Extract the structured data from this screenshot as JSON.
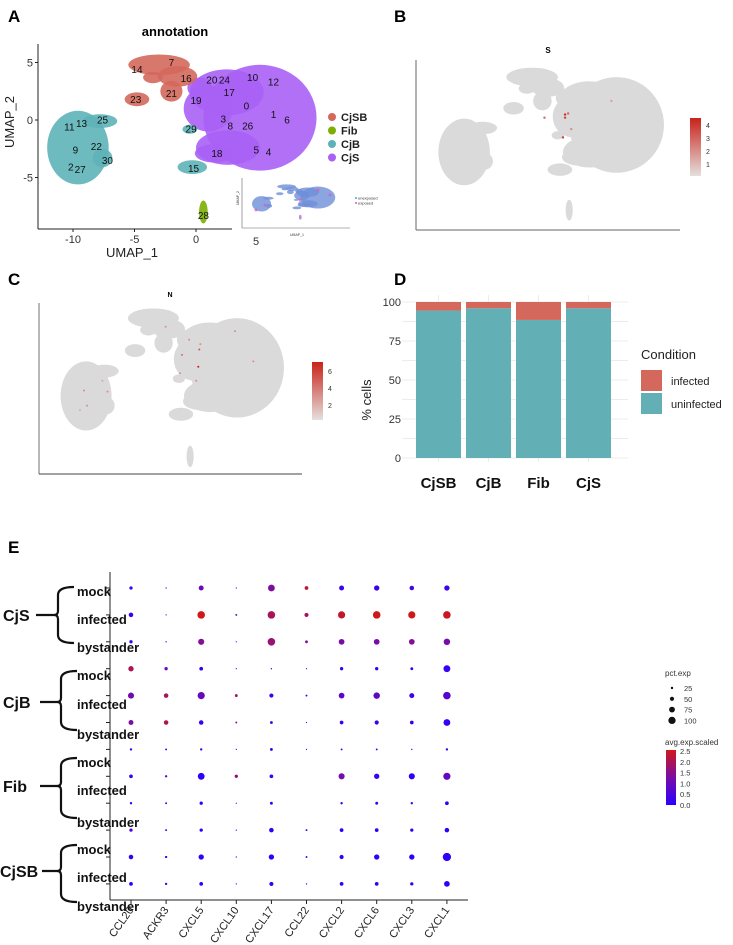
{
  "panel_labels": [
    "A",
    "B",
    "C",
    "D",
    "E"
  ],
  "colors": {
    "CjSB": "#D4685C",
    "Fib": "#7CAE00",
    "CjB": "#5DB2B8",
    "CjS": "#A960F5",
    "gray": "#DADADA",
    "infected": "#D4685C",
    "uninfected": "#62AFB5",
    "low": "#2A00FF",
    "high": "#D01818"
  },
  "chart_data": [
    {
      "id": "A",
      "type": "scatter",
      "title": "annotation",
      "xlabel": "UMAP_1",
      "ylabel": "UMAP_2",
      "xticks": [
        "-10",
        "-5",
        "0",
        "5"
      ],
      "yticks": [
        "5",
        "0",
        "-5"
      ],
      "legend": [
        "CjSB",
        "Fib",
        "CjB",
        "CjS"
      ],
      "cluster_labels": [
        {
          "id": "14",
          "x": -4.8,
          "y": 4.4
        },
        {
          "id": "7",
          "x": -2.0,
          "y": 5.0
        },
        {
          "id": "16",
          "x": -0.8,
          "y": 3.6
        },
        {
          "id": "20",
          "x": 1.4,
          "y": 3.5
        },
        {
          "id": "24",
          "x": 2.2,
          "y": 3.5
        },
        {
          "id": "10",
          "x": 4.6,
          "y": 3.7
        },
        {
          "id": "12",
          "x": 6.3,
          "y": 3.3
        },
        {
          "id": "17",
          "x": 2.7,
          "y": 2.4
        },
        {
          "id": "21",
          "x": -2.0,
          "y": 2.3
        },
        {
          "id": "23",
          "x": -4.9,
          "y": 1.8
        },
        {
          "id": "19",
          "x": 0.0,
          "y": 1.7
        },
        {
          "id": "0",
          "x": 4.1,
          "y": 1.2
        },
        {
          "id": "1",
          "x": 6.3,
          "y": 0.5
        },
        {
          "id": "6",
          "x": 7.4,
          "y": 0.0
        },
        {
          "id": "3",
          "x": 2.4,
          "y": 0.1
        },
        {
          "id": "8",
          "x": 2.6,
          "y": -0.5
        },
        {
          "id": "26",
          "x": 4.2,
          "y": -0.5
        },
        {
          "id": "29",
          "x": -0.4,
          "y": -0.8
        },
        {
          "id": "5",
          "x": 4.9,
          "y": -2.6
        },
        {
          "id": "4",
          "x": 5.9,
          "y": -2.8
        },
        {
          "id": "18",
          "x": 1.7,
          "y": -2.9
        },
        {
          "id": "15",
          "x": -0.2,
          "y": -4.2
        },
        {
          "id": "28",
          "x": 0.6,
          "y": -8.3
        },
        {
          "id": "11",
          "x": -10.2,
          "y": -0.6
        },
        {
          "id": "13",
          "x": -9.4,
          "y": -0.3
        },
        {
          "id": "25",
          "x": -7.6,
          "y": 0.0
        },
        {
          "id": "9",
          "x": -9.8,
          "y": -2.6
        },
        {
          "id": "22",
          "x": -8.1,
          "y": -2.3
        },
        {
          "id": "30",
          "x": -7.2,
          "y": -3.5
        },
        {
          "id": "2",
          "x": -9.9,
          "y": -4.1
        },
        {
          "id": "27",
          "x": -9.7,
          "y": -4.3
        }
      ],
      "inset": {
        "xlabel": "UMAP_1",
        "ylabel": "UMAP_2",
        "legend": [
          "unexposed",
          "exposed"
        ],
        "partial_tick": "5"
      }
    },
    {
      "id": "B",
      "type": "scatter",
      "title": "S",
      "colorbar_ticks": [
        "4",
        "3",
        "2",
        "1"
      ],
      "highlight_points": [
        {
          "x": 0.2,
          "y": 1.2,
          "v": 4.5
        },
        {
          "x": 0.2,
          "y": 0.9,
          "v": 4
        },
        {
          "x": 0.5,
          "y": 1.3,
          "v": 3
        },
        {
          "x": -1.8,
          "y": 0.9,
          "v": 3
        },
        {
          "x": 0.0,
          "y": -1.0,
          "v": 4
        },
        {
          "x": 0.8,
          "y": -0.2,
          "v": 2
        },
        {
          "x": 4.7,
          "y": 2.5,
          "v": 1.5
        }
      ]
    },
    {
      "id": "C",
      "type": "scatter",
      "title": "N",
      "colorbar_ticks": [
        "6",
        "4",
        "2"
      ],
      "highlight_points": [
        {
          "x": 1.4,
          "y": 0.3,
          "v": 7
        },
        {
          "x": 1.5,
          "y": 1.9,
          "v": 5
        },
        {
          "x": 1.6,
          "y": 2.4,
          "v": 3
        },
        {
          "x": -0.2,
          "y": 1.4,
          "v": 4
        },
        {
          "x": -1.8,
          "y": 4.0,
          "v": 3
        },
        {
          "x": 0.5,
          "y": 2.8,
          "v": 3
        },
        {
          "x": -0.4,
          "y": -0.3,
          "v": 3
        },
        {
          "x": 1.2,
          "y": -1.0,
          "v": 3
        },
        {
          "x": 5.0,
          "y": 3.6,
          "v": 3
        },
        {
          "x": 6.8,
          "y": 0.8,
          "v": 3
        },
        {
          "x": -9.8,
          "y": -1.9,
          "v": 3
        },
        {
          "x": -8.0,
          "y": -1.0,
          "v": 2
        },
        {
          "x": -7.5,
          "y": -2.0,
          "v": 3
        },
        {
          "x": -9.5,
          "y": -3.3,
          "v": 3
        },
        {
          "x": -10.2,
          "y": -3.7,
          "v": 2
        }
      ]
    },
    {
      "id": "D",
      "type": "bar",
      "stacked": true,
      "categories": [
        "CjSB",
        "CjB",
        "Fib",
        "CjS"
      ],
      "series": [
        {
          "name": "uninfected",
          "values": [
            94.5,
            96,
            88.5,
            96
          ]
        },
        {
          "name": "infected",
          "values": [
            5.5,
            4,
            11.5,
            4
          ]
        }
      ],
      "ylabel": "% cells",
      "ylim": [
        0,
        100
      ],
      "yticks": [
        "0",
        "25",
        "50",
        "75",
        "100"
      ],
      "legend_title": "Condition",
      "legend": [
        "infected",
        "uninfected"
      ],
      "legend_position": "right",
      "grid": true
    },
    {
      "id": "E",
      "type": "scatter",
      "subtype": "dotplot",
      "genes": [
        "CCL20",
        "ACKR3",
        "CXCL5",
        "CXCL10",
        "CXCL17",
        "CCL22",
        "CXCL2",
        "CXCL6",
        "CXCL3",
        "CXCL1"
      ],
      "groups": [
        {
          "name": "CjS",
          "conditions": [
            "mock",
            "infected",
            "bystander"
          ]
        },
        {
          "name": "CjB",
          "conditions": [
            "mock",
            "infected",
            "bystander"
          ]
        },
        {
          "name": "Fib",
          "conditions": [
            "mock",
            "infected",
            "bystander"
          ]
        },
        {
          "name": "CjSB",
          "conditions": [
            "mock",
            "infected",
            "bystander"
          ]
        }
      ],
      "pct_exp": [
        [
          30,
          10,
          50,
          5,
          75,
          35,
          50,
          55,
          45,
          55
        ],
        [
          45,
          5,
          85,
          15,
          85,
          40,
          80,
          85,
          80,
          85
        ],
        [
          30,
          10,
          65,
          5,
          85,
          25,
          60,
          60,
          60,
          70
        ],
        [
          55,
          30,
          35,
          5,
          10,
          5,
          30,
          30,
          25,
          75
        ],
        [
          65,
          45,
          80,
          25,
          40,
          15,
          60,
          70,
          50,
          85
        ],
        [
          50,
          45,
          45,
          15,
          25,
          5,
          35,
          40,
          35,
          75
        ],
        [
          20,
          15,
          20,
          5,
          25,
          5,
          15,
          15,
          10,
          20
        ],
        [
          35,
          20,
          75,
          30,
          35,
          null,
          65,
          55,
          65,
          80
        ],
        [
          20,
          15,
          30,
          5,
          25,
          null,
          20,
          25,
          20,
          35
        ],
        [
          30,
          15,
          30,
          5,
          45,
          15,
          35,
          35,
          30,
          45
        ],
        [
          45,
          20,
          55,
          10,
          55,
          15,
          40,
          55,
          55,
          95
        ],
        [
          35,
          20,
          35,
          5,
          40,
          10,
          35,
          35,
          30,
          60
        ]
      ],
      "avg_exp_scaled": [
        [
          0.2,
          0.2,
          1.0,
          0.3,
          1.3,
          2.2,
          0.3,
          0.2,
          0.5,
          0.3
        ],
        [
          0.2,
          0.3,
          2.5,
          0.6,
          1.9,
          1.9,
          2.3,
          2.5,
          2.5,
          2.4
        ],
        [
          0.2,
          0.3,
          1.4,
          0.3,
          1.7,
          1.3,
          1.2,
          1.2,
          1.4,
          1.2
        ],
        [
          2.0,
          1.0,
          0.2,
          0.2,
          0.2,
          0.2,
          0.2,
          0.1,
          0.2,
          0.2
        ],
        [
          1.1,
          1.9,
          0.9,
          1.9,
          0.3,
          0.2,
          0.7,
          0.8,
          0.3,
          0.7
        ],
        [
          1.3,
          2.0,
          0.2,
          1.5,
          0.2,
          0.2,
          0.2,
          0.2,
          0.2,
          0.2
        ],
        [
          0.1,
          0.1,
          0.1,
          0.1,
          0.1,
          0.1,
          0.1,
          0.1,
          0.1,
          0.1
        ],
        [
          0.2,
          0.8,
          0.1,
          1.6,
          0.2,
          null,
          1.2,
          0.2,
          0.1,
          0.9
        ],
        [
          0.1,
          0.1,
          0.1,
          0.1,
          0.1,
          null,
          0.1,
          0.1,
          0.1,
          0.1
        ],
        [
          0.5,
          0.3,
          0.1,
          0.1,
          0.1,
          0.1,
          0.1,
          0.1,
          0.1,
          0.1
        ],
        [
          0.1,
          0.1,
          0.1,
          0.1,
          0.1,
          0.1,
          0.1,
          0.1,
          0.1,
          0.1
        ],
        [
          0.1,
          0.1,
          0.1,
          0.1,
          0.1,
          0.1,
          0.1,
          0.1,
          0.1,
          0.1
        ]
      ],
      "size_legend_title": "pct.exp",
      "size_legend": [
        "25",
        "50",
        "75",
        "100"
      ],
      "color_legend_title": "avg.exp.scaled",
      "color_legend": [
        "2.5",
        "2.0",
        "1.5",
        "1.0",
        "0.5",
        "0.0"
      ],
      "color_range": [
        0,
        2.5
      ]
    }
  ]
}
